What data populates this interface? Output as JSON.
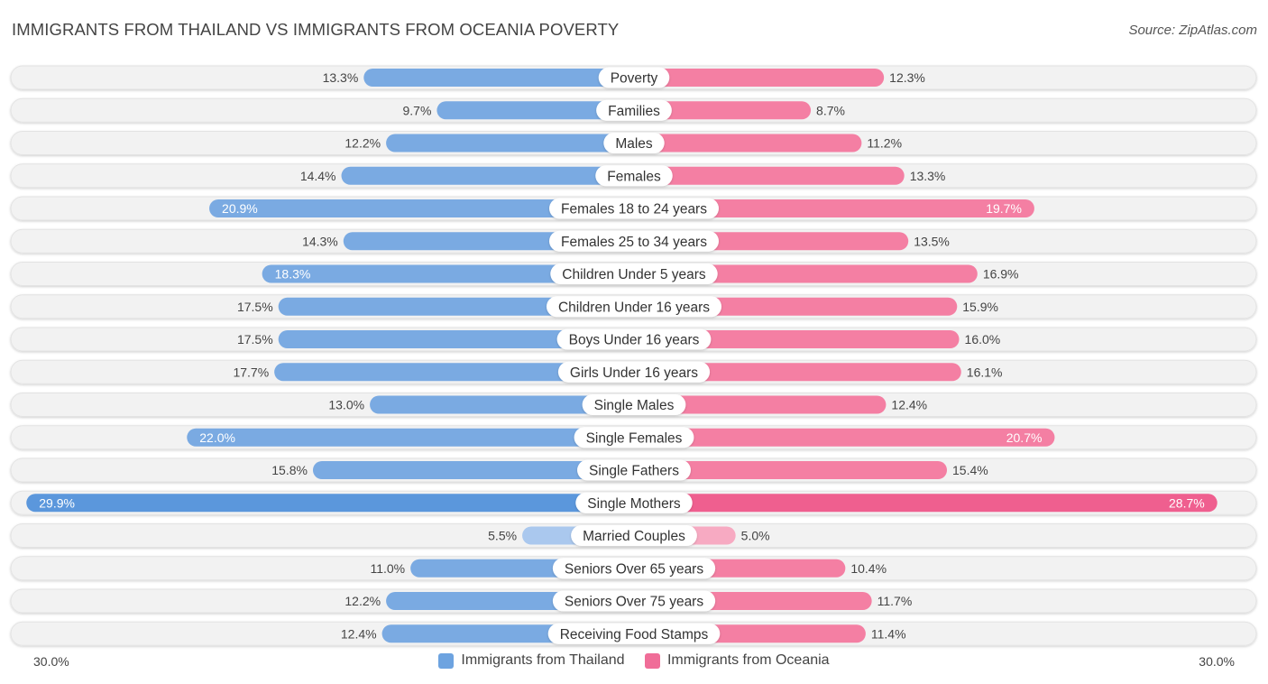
{
  "header": {
    "title": "IMMIGRANTS FROM THAILAND VS IMMIGRANTS FROM OCEANIA POVERTY",
    "source": "Source: ZipAtlas.com"
  },
  "axis": {
    "left_label": "30.0%",
    "right_label": "30.0%"
  },
  "colors": {
    "left_bar": "#7aaae2",
    "left_bar_strong": "#5b97dc",
    "left_bar_light": "#aac8ee",
    "right_bar": "#f47fa3",
    "right_bar_strong": "#ef5f8f",
    "right_bar_light": "#f7aac2",
    "row_bg": "#f2f2f2"
  },
  "legend": [
    {
      "label": "Immigrants from Thailand",
      "color": "#6da3e0"
    },
    {
      "label": "Immigrants from Oceania",
      "color": "#f06d98"
    }
  ],
  "chart_data": {
    "type": "bar",
    "orientation": "horizontal-diverging",
    "title": "IMMIGRANTS FROM THAILAND VS IMMIGRANTS FROM OCEANIA POVERTY",
    "xlim": [
      -30,
      30
    ],
    "unit": "%",
    "categories": [
      "Poverty",
      "Families",
      "Males",
      "Females",
      "Females 18 to 24 years",
      "Females 25 to 34 years",
      "Children Under 5 years",
      "Children Under 16 years",
      "Boys Under 16 years",
      "Girls Under 16 years",
      "Single Males",
      "Single Females",
      "Single Fathers",
      "Single Mothers",
      "Married Couples",
      "Seniors Over 65 years",
      "Seniors Over 75 years",
      "Receiving Food Stamps"
    ],
    "series": [
      {
        "name": "Immigrants from Thailand",
        "side": "left",
        "values": [
          13.3,
          9.7,
          12.2,
          14.4,
          20.9,
          14.3,
          18.3,
          17.5,
          17.5,
          17.7,
          13.0,
          22.0,
          15.8,
          29.9,
          5.5,
          11.0,
          12.2,
          12.4
        ],
        "labels": [
          "13.3%",
          "9.7%",
          "12.2%",
          "14.4%",
          "20.9%",
          "14.3%",
          "18.3%",
          "17.5%",
          "17.5%",
          "17.7%",
          "13.0%",
          "22.0%",
          "15.8%",
          "29.9%",
          "5.5%",
          "11.0%",
          "12.2%",
          "12.4%"
        ]
      },
      {
        "name": "Immigrants from Oceania",
        "side": "right",
        "values": [
          12.3,
          8.7,
          11.2,
          13.3,
          19.7,
          13.5,
          16.9,
          15.9,
          16.0,
          16.1,
          12.4,
          20.7,
          15.4,
          28.7,
          5.0,
          10.4,
          11.7,
          11.4
        ],
        "labels": [
          "12.3%",
          "8.7%",
          "11.2%",
          "13.3%",
          "19.7%",
          "13.5%",
          "16.9%",
          "15.9%",
          "16.0%",
          "16.1%",
          "12.4%",
          "20.7%",
          "15.4%",
          "28.7%",
          "5.0%",
          "10.4%",
          "11.7%",
          "11.4%"
        ]
      }
    ]
  }
}
